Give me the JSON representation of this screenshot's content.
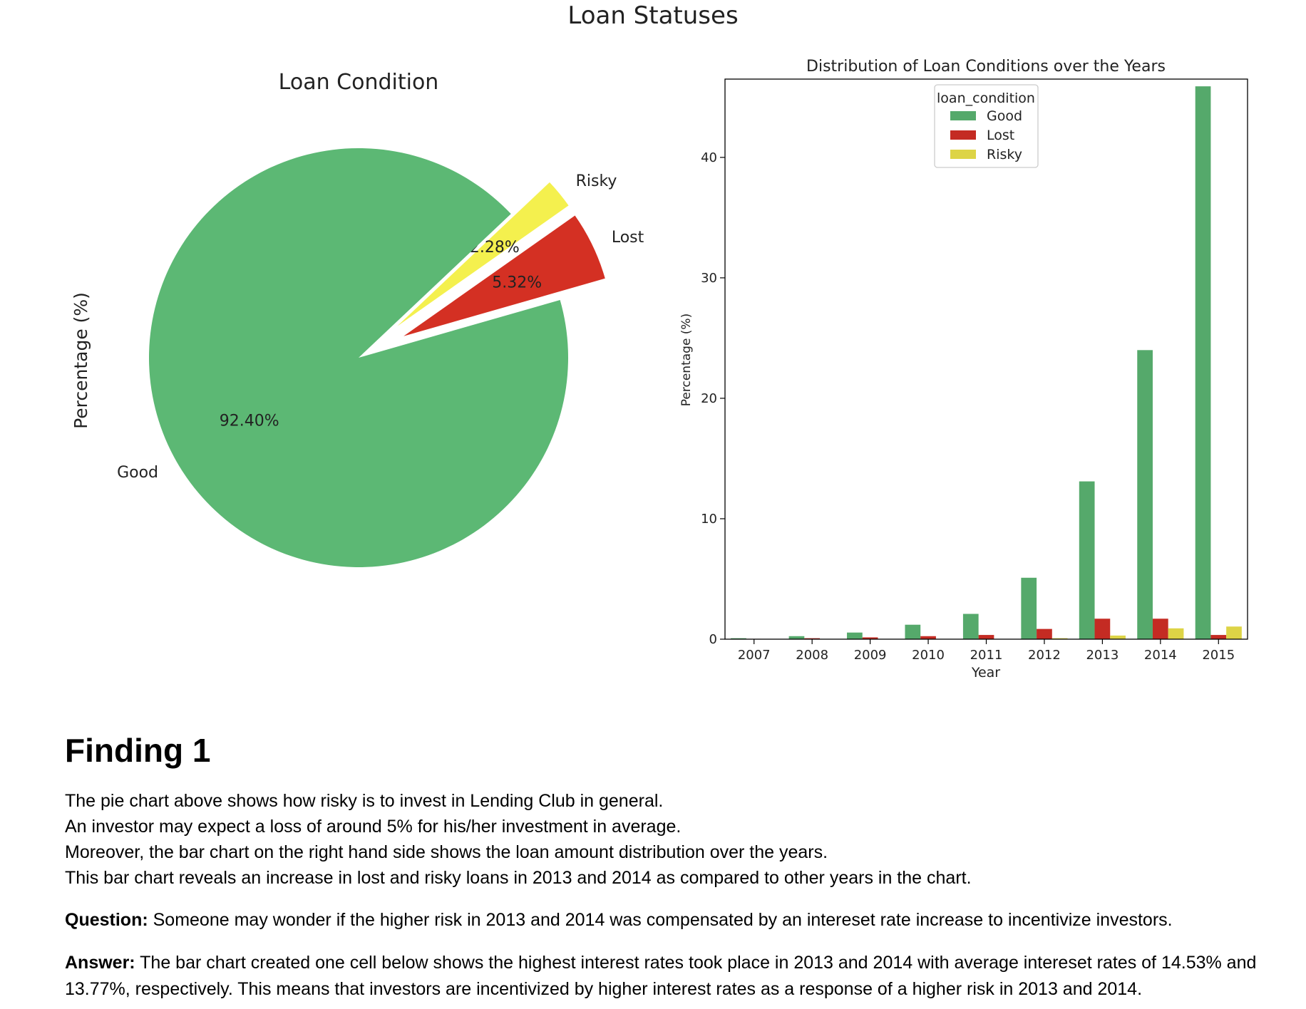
{
  "figure_title": "Loan Statuses",
  "chart_data": [
    {
      "type": "pie",
      "title": "Loan Condition",
      "ylabel": "Percentage (%)",
      "slices": [
        {
          "label": "Good",
          "value": 92.4,
          "pct_label": "92.40%",
          "color": "#5cb874",
          "explode": false
        },
        {
          "label": "Lost",
          "value": 5.32,
          "pct_label": "5.32%",
          "color": "#d43023",
          "explode": true
        },
        {
          "label": "Risky",
          "value": 2.28,
          "pct_label": "2.28%",
          "color": "#f4f04e",
          "explode": true
        }
      ]
    },
    {
      "type": "bar",
      "title": "Distribution of Loan Conditions over the Years",
      "xlabel": "Year",
      "ylabel": "Percentage (%)",
      "ylim": [
        0,
        46.5
      ],
      "yticks": [
        0,
        10,
        20,
        30,
        40
      ],
      "categories": [
        "2007",
        "2008",
        "2009",
        "2010",
        "2011",
        "2012",
        "2013",
        "2014",
        "2015"
      ],
      "legend_title": "loan_condition",
      "legend_position": "top-center",
      "series": [
        {
          "name": "Good",
          "color": "#55a96b",
          "values": [
            0.08,
            0.25,
            0.55,
            1.2,
            2.1,
            5.1,
            13.1,
            24.0,
            45.9
          ]
        },
        {
          "name": "Lost",
          "color": "#c42b23",
          "values": [
            0.03,
            0.08,
            0.15,
            0.25,
            0.35,
            0.85,
            1.7,
            1.7,
            0.35
          ]
        },
        {
          "name": "Risky",
          "color": "#ddd446",
          "values": [
            0.0,
            0.0,
            0.0,
            0.0,
            0.0,
            0.08,
            0.3,
            0.9,
            1.05
          ]
        }
      ]
    }
  ],
  "finding": {
    "heading": "Finding 1",
    "lines": [
      "The pie chart above shows how risky is to invest in Lending Club in general.",
      "An investor may expect a loss of around 5% for his/her investment in average.",
      "Moreover, the bar chart on the right hand side shows the loan amount distribution over the years.",
      "This bar chart reveals an increase in lost and risky loans in 2013 and 2014 as compared to other years in the chart."
    ],
    "question_label": "Question:",
    "question": "Someone may wonder if the higher risk in 2013 and 2014 was compensated by an intereset rate increase to incentivize investors.",
    "answer_label": "Answer:",
    "answer": "The bar chart created one cell below shows the highest interest rates took place in 2013 and 2014 with average intereset rates of 14.53% and 13.77%, respectively. This means that investors are incentivized by higher interest rates as a response of a higher risk in 2013 and 2014."
  }
}
